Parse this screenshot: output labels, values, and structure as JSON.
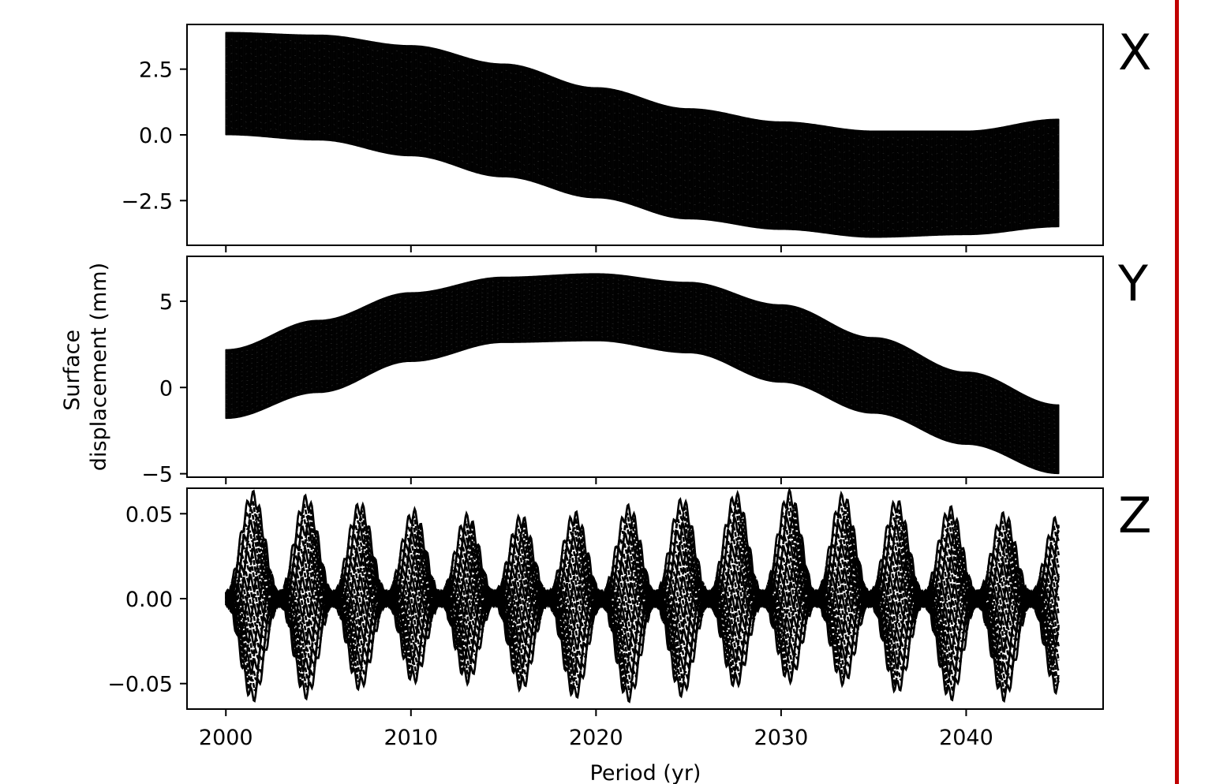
{
  "colors": {
    "data": "#000000",
    "frame": "#000000",
    "background": "#ffffff",
    "rule": "#c00000"
  },
  "chart_data": {
    "type": "line",
    "xlabel": "Period (yr)",
    "ylabel": [
      "Surface",
      "displacement (mm)"
    ],
    "xlim": [
      1997.9,
      2047.4
    ],
    "xticks": [
      2000,
      2010,
      2020,
      2030,
      2040
    ],
    "xticklabels": [
      "2000",
      "2010",
      "2020",
      "2030",
      "2040"
    ],
    "grid": false,
    "panels": [
      {
        "label": "X",
        "ylim": [
          -4.2,
          4.2
        ],
        "yticks": [
          2.5,
          0.0,
          -2.5
        ],
        "yticklabels": [
          "2.5",
          "0.0",
          "−2.5"
        ],
        "x": [
          2000,
          2005,
          2010,
          2015,
          2020,
          2025,
          2030,
          2035,
          2040,
          2045
        ],
        "upper": [
          3.9,
          3.8,
          3.4,
          2.7,
          1.8,
          1.0,
          0.5,
          0.15,
          0.15,
          0.6
        ],
        "lower": [
          0.0,
          -0.2,
          -0.8,
          -1.6,
          -2.4,
          -3.2,
          -3.6,
          -3.9,
          -3.8,
          -3.5
        ]
      },
      {
        "label": "Y",
        "ylim": [
          -5.2,
          7.6
        ],
        "yticks": [
          5,
          0,
          -5
        ],
        "yticklabels": [
          "5",
          "0",
          "−5"
        ],
        "x": [
          2000,
          2005,
          2010,
          2015,
          2020,
          2025,
          2030,
          2035,
          2040,
          2045
        ],
        "upper": [
          2.2,
          3.9,
          5.5,
          6.4,
          6.6,
          6.1,
          4.8,
          2.9,
          0.9,
          -1.0
        ],
        "lower": [
          -1.8,
          -0.3,
          1.5,
          2.6,
          2.7,
          2.0,
          0.3,
          -1.5,
          -3.3,
          -5.0
        ]
      },
      {
        "label": "Z",
        "ylim": [
          -0.065,
          0.065
        ],
        "yticks": [
          0.05,
          0.0,
          -0.05
        ],
        "yticklabels": [
          "0.05",
          "0.00",
          "−0.05"
        ],
        "x_start": 2000,
        "x_end": 2045,
        "cycle_period_yr": 2.9,
        "peak_amplitude": 0.06,
        "trough_amplitude": -0.057
      }
    ]
  }
}
